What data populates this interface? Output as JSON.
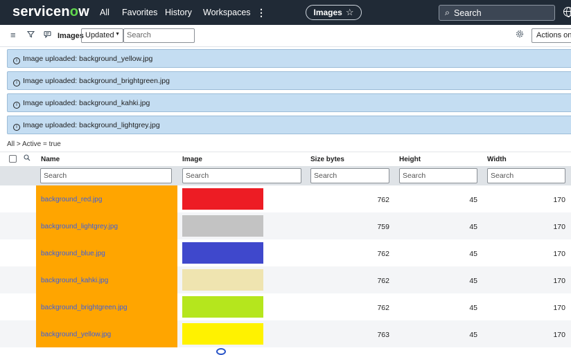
{
  "topnav": {
    "logo_prefix": "servicen",
    "logo_o": "o",
    "logo_suffix": "w",
    "links": [
      "All",
      "Favorites",
      "History",
      "Workspaces"
    ],
    "kebab": "⋮",
    "pill_label": "Images",
    "pill_star": "☆",
    "search_label": "Search",
    "search_icon": "⌕"
  },
  "toolbar": {
    "title": "Images",
    "sort_value": "Updated",
    "search_placeholder": "Search",
    "actions_label": "Actions on selected rows"
  },
  "messages": [
    "Image uploaded: background_yellow.jpg",
    "Image uploaded: background_brightgreen.jpg",
    "Image uploaded: background_kahki.jpg",
    "Image uploaded: background_lightgrey.jpg"
  ],
  "breadcrumb": "All > Active = true",
  "table": {
    "columns": {
      "name": "Name",
      "image": "Image",
      "size": "Size bytes",
      "height": "Height",
      "width": "Width"
    },
    "filter_placeholder": "Search",
    "rows": [
      {
        "name": "background_red.jpg",
        "color": "#ed1c24",
        "size": "762",
        "height": "45",
        "width": "170"
      },
      {
        "name": "background_lightgrey.jpg",
        "color": "#c3c3c3",
        "size": "759",
        "height": "45",
        "width": "170"
      },
      {
        "name": "background_blue.jpg",
        "color": "#3f48cc",
        "size": "762",
        "height": "45",
        "width": "170"
      },
      {
        "name": "background_kahki.jpg",
        "color": "#efe4b0",
        "size": "762",
        "height": "45",
        "width": "170"
      },
      {
        "name": "background_brightgreen.jpg",
        "color": "#b5e61d",
        "size": "762",
        "height": "45",
        "width": "170"
      },
      {
        "name": "background_yellow.jpg",
        "color": "#fff200",
        "size": "763",
        "height": "45",
        "width": "170"
      }
    ]
  },
  "colors": {
    "nav_bg": "#202a36",
    "highlight": "#ffa500",
    "info_bg": "#c4ddf2",
    "link": "#3b5fe0"
  }
}
